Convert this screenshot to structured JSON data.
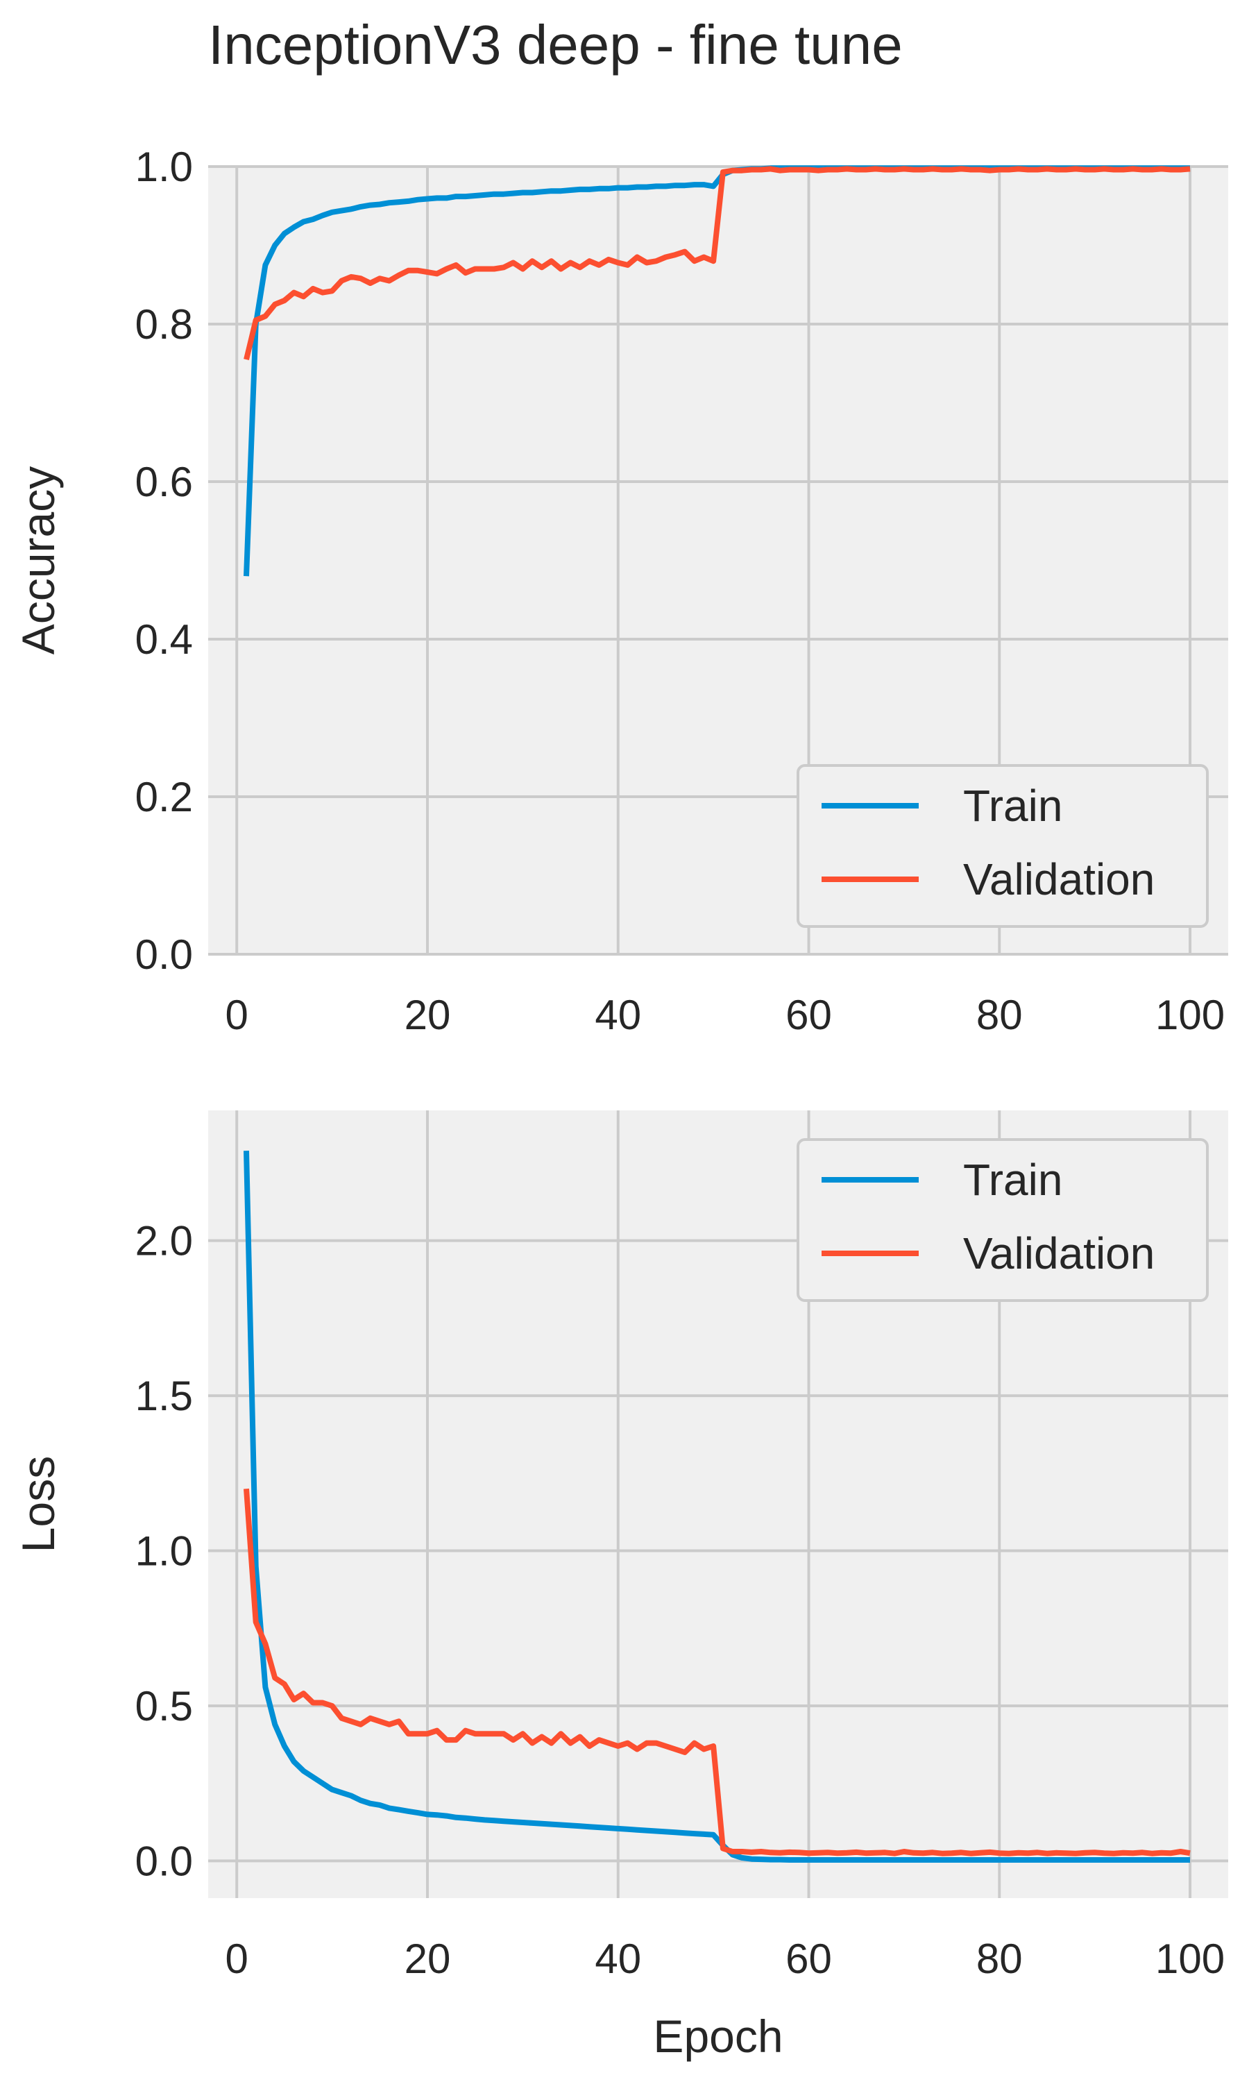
{
  "title": "InceptionV3 deep - fine tune",
  "colors": {
    "train": "#008fd5",
    "validation": "#fc4f30",
    "panel_bg": "#f0f0f0",
    "grid": "#cbcbcb",
    "text": "#262626"
  },
  "chart_data": [
    {
      "type": "line",
      "ylabel": "Accuracy",
      "xlabel": "",
      "xlim": [
        -3,
        104
      ],
      "ylim": [
        0,
        1.0
      ],
      "xticks": [
        0,
        20,
        40,
        60,
        80,
        100
      ],
      "xtick_labels": [
        "0",
        "20",
        "40",
        "60",
        "80",
        "100"
      ],
      "yticks": [
        0.0,
        0.2,
        0.4,
        0.6,
        0.8,
        1.0
      ],
      "ytick_labels": [
        "0.0",
        "0.2",
        "0.4",
        "0.6",
        "0.8",
        "1.0"
      ],
      "grid": true,
      "legend_position": "bottom-right",
      "x": [
        1,
        2,
        3,
        4,
        5,
        6,
        7,
        8,
        9,
        10,
        11,
        12,
        13,
        14,
        15,
        16,
        17,
        18,
        19,
        20,
        21,
        22,
        23,
        24,
        25,
        26,
        27,
        28,
        29,
        30,
        31,
        32,
        33,
        34,
        35,
        36,
        37,
        38,
        39,
        40,
        41,
        42,
        43,
        44,
        45,
        46,
        47,
        48,
        49,
        50,
        51,
        52,
        53,
        54,
        55,
        56,
        57,
        58,
        59,
        60,
        61,
        62,
        63,
        64,
        65,
        66,
        67,
        68,
        69,
        70,
        71,
        72,
        73,
        74,
        75,
        76,
        77,
        78,
        79,
        80,
        81,
        82,
        83,
        84,
        85,
        86,
        87,
        88,
        89,
        90,
        91,
        92,
        93,
        94,
        95,
        96,
        97,
        98,
        99,
        100
      ],
      "series": [
        {
          "name": "Train",
          "values": [
            0.48,
            0.8,
            0.875,
            0.9,
            0.915,
            0.923,
            0.93,
            0.933,
            0.938,
            0.942,
            0.944,
            0.946,
            0.949,
            0.951,
            0.952,
            0.954,
            0.955,
            0.956,
            0.958,
            0.959,
            0.96,
            0.96,
            0.962,
            0.962,
            0.963,
            0.964,
            0.965,
            0.965,
            0.966,
            0.967,
            0.967,
            0.968,
            0.969,
            0.969,
            0.97,
            0.971,
            0.971,
            0.972,
            0.972,
            0.973,
            0.973,
            0.974,
            0.974,
            0.975,
            0.975,
            0.976,
            0.976,
            0.977,
            0.977,
            0.975,
            0.99,
            0.995,
            0.996,
            0.997,
            0.997,
            0.998,
            0.998,
            0.998,
            0.998,
            0.998,
            0.998,
            0.998,
            0.998,
            0.998,
            0.998,
            0.998,
            0.998,
            0.998,
            0.998,
            0.998,
            0.998,
            0.998,
            0.998,
            0.998,
            0.998,
            0.998,
            0.998,
            0.998,
            0.998,
            0.998,
            0.998,
            0.998,
            0.998,
            0.998,
            0.998,
            0.998,
            0.998,
            0.998,
            0.998,
            0.998,
            0.998,
            0.998,
            0.998,
            0.998,
            0.998,
            0.998,
            0.998,
            0.998,
            0.998,
            0.998
          ]
        },
        {
          "name": "Validation",
          "values": [
            0.755,
            0.805,
            0.81,
            0.825,
            0.83,
            0.84,
            0.835,
            0.845,
            0.84,
            0.842,
            0.855,
            0.86,
            0.858,
            0.852,
            0.858,
            0.855,
            0.862,
            0.868,
            0.868,
            0.866,
            0.864,
            0.87,
            0.875,
            0.865,
            0.87,
            0.87,
            0.87,
            0.872,
            0.878,
            0.87,
            0.88,
            0.872,
            0.88,
            0.87,
            0.878,
            0.872,
            0.88,
            0.875,
            0.882,
            0.878,
            0.875,
            0.885,
            0.878,
            0.88,
            0.885,
            0.888,
            0.892,
            0.88,
            0.885,
            0.88,
            0.993,
            0.995,
            0.995,
            0.996,
            0.996,
            0.997,
            0.995,
            0.996,
            0.996,
            0.996,
            0.995,
            0.996,
            0.996,
            0.997,
            0.996,
            0.996,
            0.997,
            0.996,
            0.996,
            0.997,
            0.996,
            0.996,
            0.997,
            0.996,
            0.996,
            0.997,
            0.996,
            0.996,
            0.995,
            0.996,
            0.996,
            0.997,
            0.996,
            0.996,
            0.997,
            0.996,
            0.996,
            0.997,
            0.996,
            0.996,
            0.997,
            0.996,
            0.996,
            0.997,
            0.996,
            0.996,
            0.997,
            0.996,
            0.996,
            0.997
          ]
        }
      ]
    },
    {
      "type": "line",
      "ylabel": "Loss",
      "xlabel": "Epoch",
      "xlim": [
        -3,
        104
      ],
      "ylim": [
        -0.12,
        2.42
      ],
      "xticks": [
        0,
        20,
        40,
        60,
        80,
        100
      ],
      "xtick_labels": [
        "0",
        "20",
        "40",
        "60",
        "80",
        "100"
      ],
      "yticks": [
        0.0,
        0.5,
        1.0,
        1.5,
        2.0
      ],
      "ytick_labels": [
        "0.0",
        "0.5",
        "1.0",
        "1.5",
        "2.0"
      ],
      "grid": true,
      "legend_position": "top-right",
      "x": [
        1,
        2,
        3,
        4,
        5,
        6,
        7,
        8,
        9,
        10,
        11,
        12,
        13,
        14,
        15,
        16,
        17,
        18,
        19,
        20,
        21,
        22,
        23,
        24,
        25,
        26,
        27,
        28,
        29,
        30,
        31,
        32,
        33,
        34,
        35,
        36,
        37,
        38,
        39,
        40,
        41,
        42,
        43,
        44,
        45,
        46,
        47,
        48,
        49,
        50,
        51,
        52,
        53,
        54,
        55,
        56,
        57,
        58,
        59,
        60,
        61,
        62,
        63,
        64,
        65,
        66,
        67,
        68,
        69,
        70,
        71,
        72,
        73,
        74,
        75,
        76,
        77,
        78,
        79,
        80,
        81,
        82,
        83,
        84,
        85,
        86,
        87,
        88,
        89,
        90,
        91,
        92,
        93,
        94,
        95,
        96,
        97,
        98,
        99,
        100
      ],
      "series": [
        {
          "name": "Train",
          "values": [
            2.29,
            0.95,
            0.56,
            0.44,
            0.37,
            0.32,
            0.29,
            0.27,
            0.25,
            0.23,
            0.22,
            0.21,
            0.195,
            0.185,
            0.18,
            0.17,
            0.165,
            0.16,
            0.155,
            0.15,
            0.148,
            0.145,
            0.14,
            0.138,
            0.135,
            0.132,
            0.13,
            0.128,
            0.126,
            0.124,
            0.122,
            0.12,
            0.118,
            0.116,
            0.114,
            0.112,
            0.11,
            0.108,
            0.106,
            0.104,
            0.102,
            0.1,
            0.098,
            0.096,
            0.094,
            0.092,
            0.09,
            0.088,
            0.086,
            0.084,
            0.05,
            0.02,
            0.01,
            0.006,
            0.005,
            0.004,
            0.004,
            0.003,
            0.003,
            0.003,
            0.003,
            0.003,
            0.003,
            0.003,
            0.003,
            0.003,
            0.003,
            0.003,
            0.003,
            0.003,
            0.003,
            0.003,
            0.003,
            0.003,
            0.003,
            0.003,
            0.003,
            0.003,
            0.003,
            0.003,
            0.003,
            0.003,
            0.003,
            0.003,
            0.003,
            0.003,
            0.003,
            0.003,
            0.003,
            0.003,
            0.003,
            0.003,
            0.003,
            0.003,
            0.003,
            0.003,
            0.003,
            0.003,
            0.003,
            0.003
          ]
        },
        {
          "name": "Validation",
          "values": [
            1.2,
            0.77,
            0.7,
            0.59,
            0.57,
            0.52,
            0.54,
            0.51,
            0.51,
            0.5,
            0.46,
            0.45,
            0.44,
            0.46,
            0.45,
            0.44,
            0.45,
            0.41,
            0.41,
            0.41,
            0.42,
            0.39,
            0.39,
            0.42,
            0.41,
            0.41,
            0.41,
            0.41,
            0.39,
            0.41,
            0.38,
            0.4,
            0.38,
            0.41,
            0.38,
            0.4,
            0.37,
            0.39,
            0.38,
            0.37,
            0.38,
            0.36,
            0.38,
            0.38,
            0.37,
            0.36,
            0.35,
            0.38,
            0.36,
            0.37,
            0.04,
            0.03,
            0.03,
            0.028,
            0.03,
            0.027,
            0.026,
            0.028,
            0.027,
            0.025,
            0.026,
            0.027,
            0.025,
            0.026,
            0.028,
            0.025,
            0.026,
            0.027,
            0.024,
            0.03,
            0.026,
            0.025,
            0.027,
            0.024,
            0.025,
            0.027,
            0.024,
            0.026,
            0.028,
            0.025,
            0.024,
            0.026,
            0.025,
            0.027,
            0.024,
            0.026,
            0.025,
            0.024,
            0.026,
            0.027,
            0.025,
            0.024,
            0.026,
            0.025,
            0.027,
            0.024,
            0.026,
            0.025,
            0.03,
            0.025
          ]
        }
      ]
    }
  ]
}
